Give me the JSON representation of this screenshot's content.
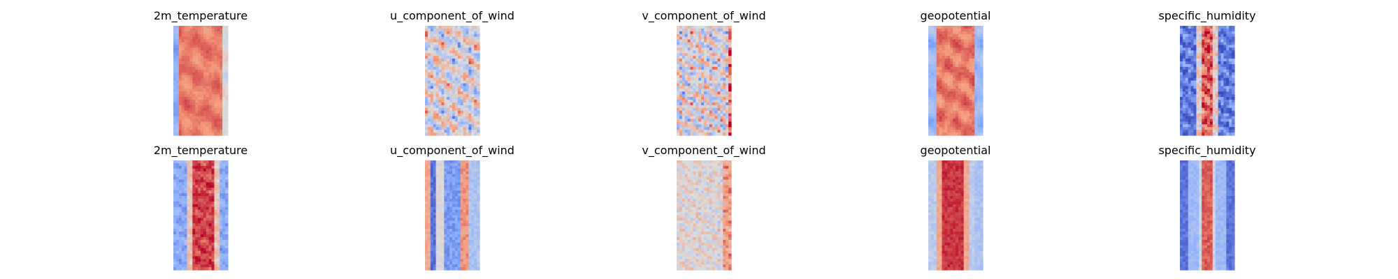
{
  "chart_data": {
    "type": "heatmap",
    "rows": 2,
    "cols": 5,
    "colormap": "coolwarm",
    "colormap_stops": [
      "#3b4cc0",
      "#8db0fe",
      "#dddddd",
      "#f49a7b",
      "#b40426"
    ],
    "axes_visible": false,
    "panels": [
      {
        "row": 0,
        "col": 0,
        "title": "2m_temperature",
        "pattern": "temp_a"
      },
      {
        "row": 0,
        "col": 1,
        "title": "u_component_of_wind",
        "pattern": "wind_a"
      },
      {
        "row": 0,
        "col": 2,
        "title": "v_component_of_wind",
        "pattern": "noise_a"
      },
      {
        "row": 0,
        "col": 3,
        "title": "geopotential",
        "pattern": "geo_a"
      },
      {
        "row": 0,
        "col": 4,
        "title": "specific_humidity",
        "pattern": "hum_a"
      },
      {
        "row": 1,
        "col": 0,
        "title": "2m_temperature",
        "pattern": "temp_b"
      },
      {
        "row": 1,
        "col": 1,
        "title": "u_component_of_wind",
        "pattern": "wind_b"
      },
      {
        "row": 1,
        "col": 2,
        "title": "v_component_of_wind",
        "pattern": "noise_b"
      },
      {
        "row": 1,
        "col": 3,
        "title": "geopotential",
        "pattern": "geo_b"
      },
      {
        "row": 1,
        "col": 4,
        "title": "specific_humidity",
        "pattern": "hum_b"
      }
    ]
  }
}
